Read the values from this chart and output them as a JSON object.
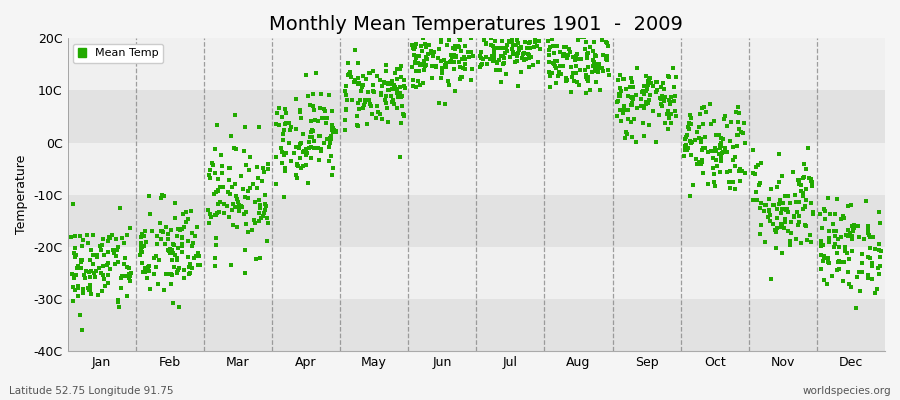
{
  "title": "Monthly Mean Temperatures 1901  -  2009",
  "ylabel": "Temperature",
  "bottom_left": "Latitude 52.75 Longitude 91.75",
  "bottom_right": "worldspecies.org",
  "legend_label": "Mean Temp",
  "dot_color": "#22aa00",
  "bg_color": "#f5f5f5",
  "band_light": "#f0f0f0",
  "band_dark": "#e2e2e2",
  "ylim": [
    -40,
    20
  ],
  "yticks": [
    -40,
    -30,
    -20,
    -10,
    0,
    10,
    20
  ],
  "ytick_labels": [
    "-40C",
    "-30C",
    "-20C",
    "-10C",
    "0C",
    "10C",
    "20C"
  ],
  "months": [
    "Jan",
    "Feb",
    "Mar",
    "Apr",
    "May",
    "Jun",
    "Jul",
    "Aug",
    "Sep",
    "Oct",
    "Nov",
    "Dec"
  ],
  "monthly_means": [
    -24.0,
    -21.0,
    -10.0,
    1.5,
    9.5,
    15.5,
    18.0,
    15.0,
    8.0,
    -0.5,
    -12.0,
    -20.0
  ],
  "monthly_stds": [
    4.5,
    5.0,
    5.5,
    4.5,
    3.5,
    2.8,
    2.5,
    2.8,
    3.5,
    4.5,
    5.0,
    4.5
  ],
  "num_years": 109,
  "figsize": [
    9.0,
    4.0
  ],
  "dpi": 100,
  "title_fontsize": 14,
  "axis_fontsize": 9,
  "label_fontsize": 9,
  "dot_size": 12,
  "dot_alpha": 1.0
}
